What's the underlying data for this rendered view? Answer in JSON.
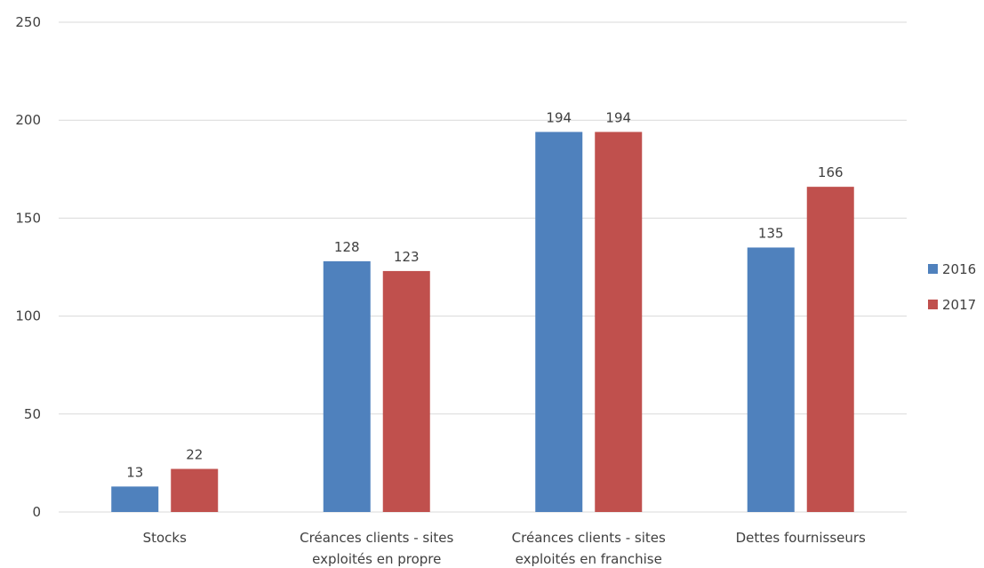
{
  "chart_data": {
    "type": "bar",
    "categories": [
      [
        "Stocks"
      ],
      [
        "Créances clients - sites",
        "exploités en propre"
      ],
      [
        "Créances clients - sites",
        "exploités en franchise"
      ],
      [
        "Dettes fournisseurs"
      ]
    ],
    "series": [
      {
        "name": "2016",
        "color": "#4f81bd",
        "values": [
          13,
          128,
          194,
          135
        ]
      },
      {
        "name": "2017",
        "color": "#c0504d",
        "values": [
          22,
          123,
          194,
          166
        ]
      }
    ],
    "y_ticks": [
      0,
      50,
      100,
      150,
      200,
      250
    ],
    "ylim": [
      0,
      250
    ],
    "grid": true,
    "legend_position": "right"
  }
}
